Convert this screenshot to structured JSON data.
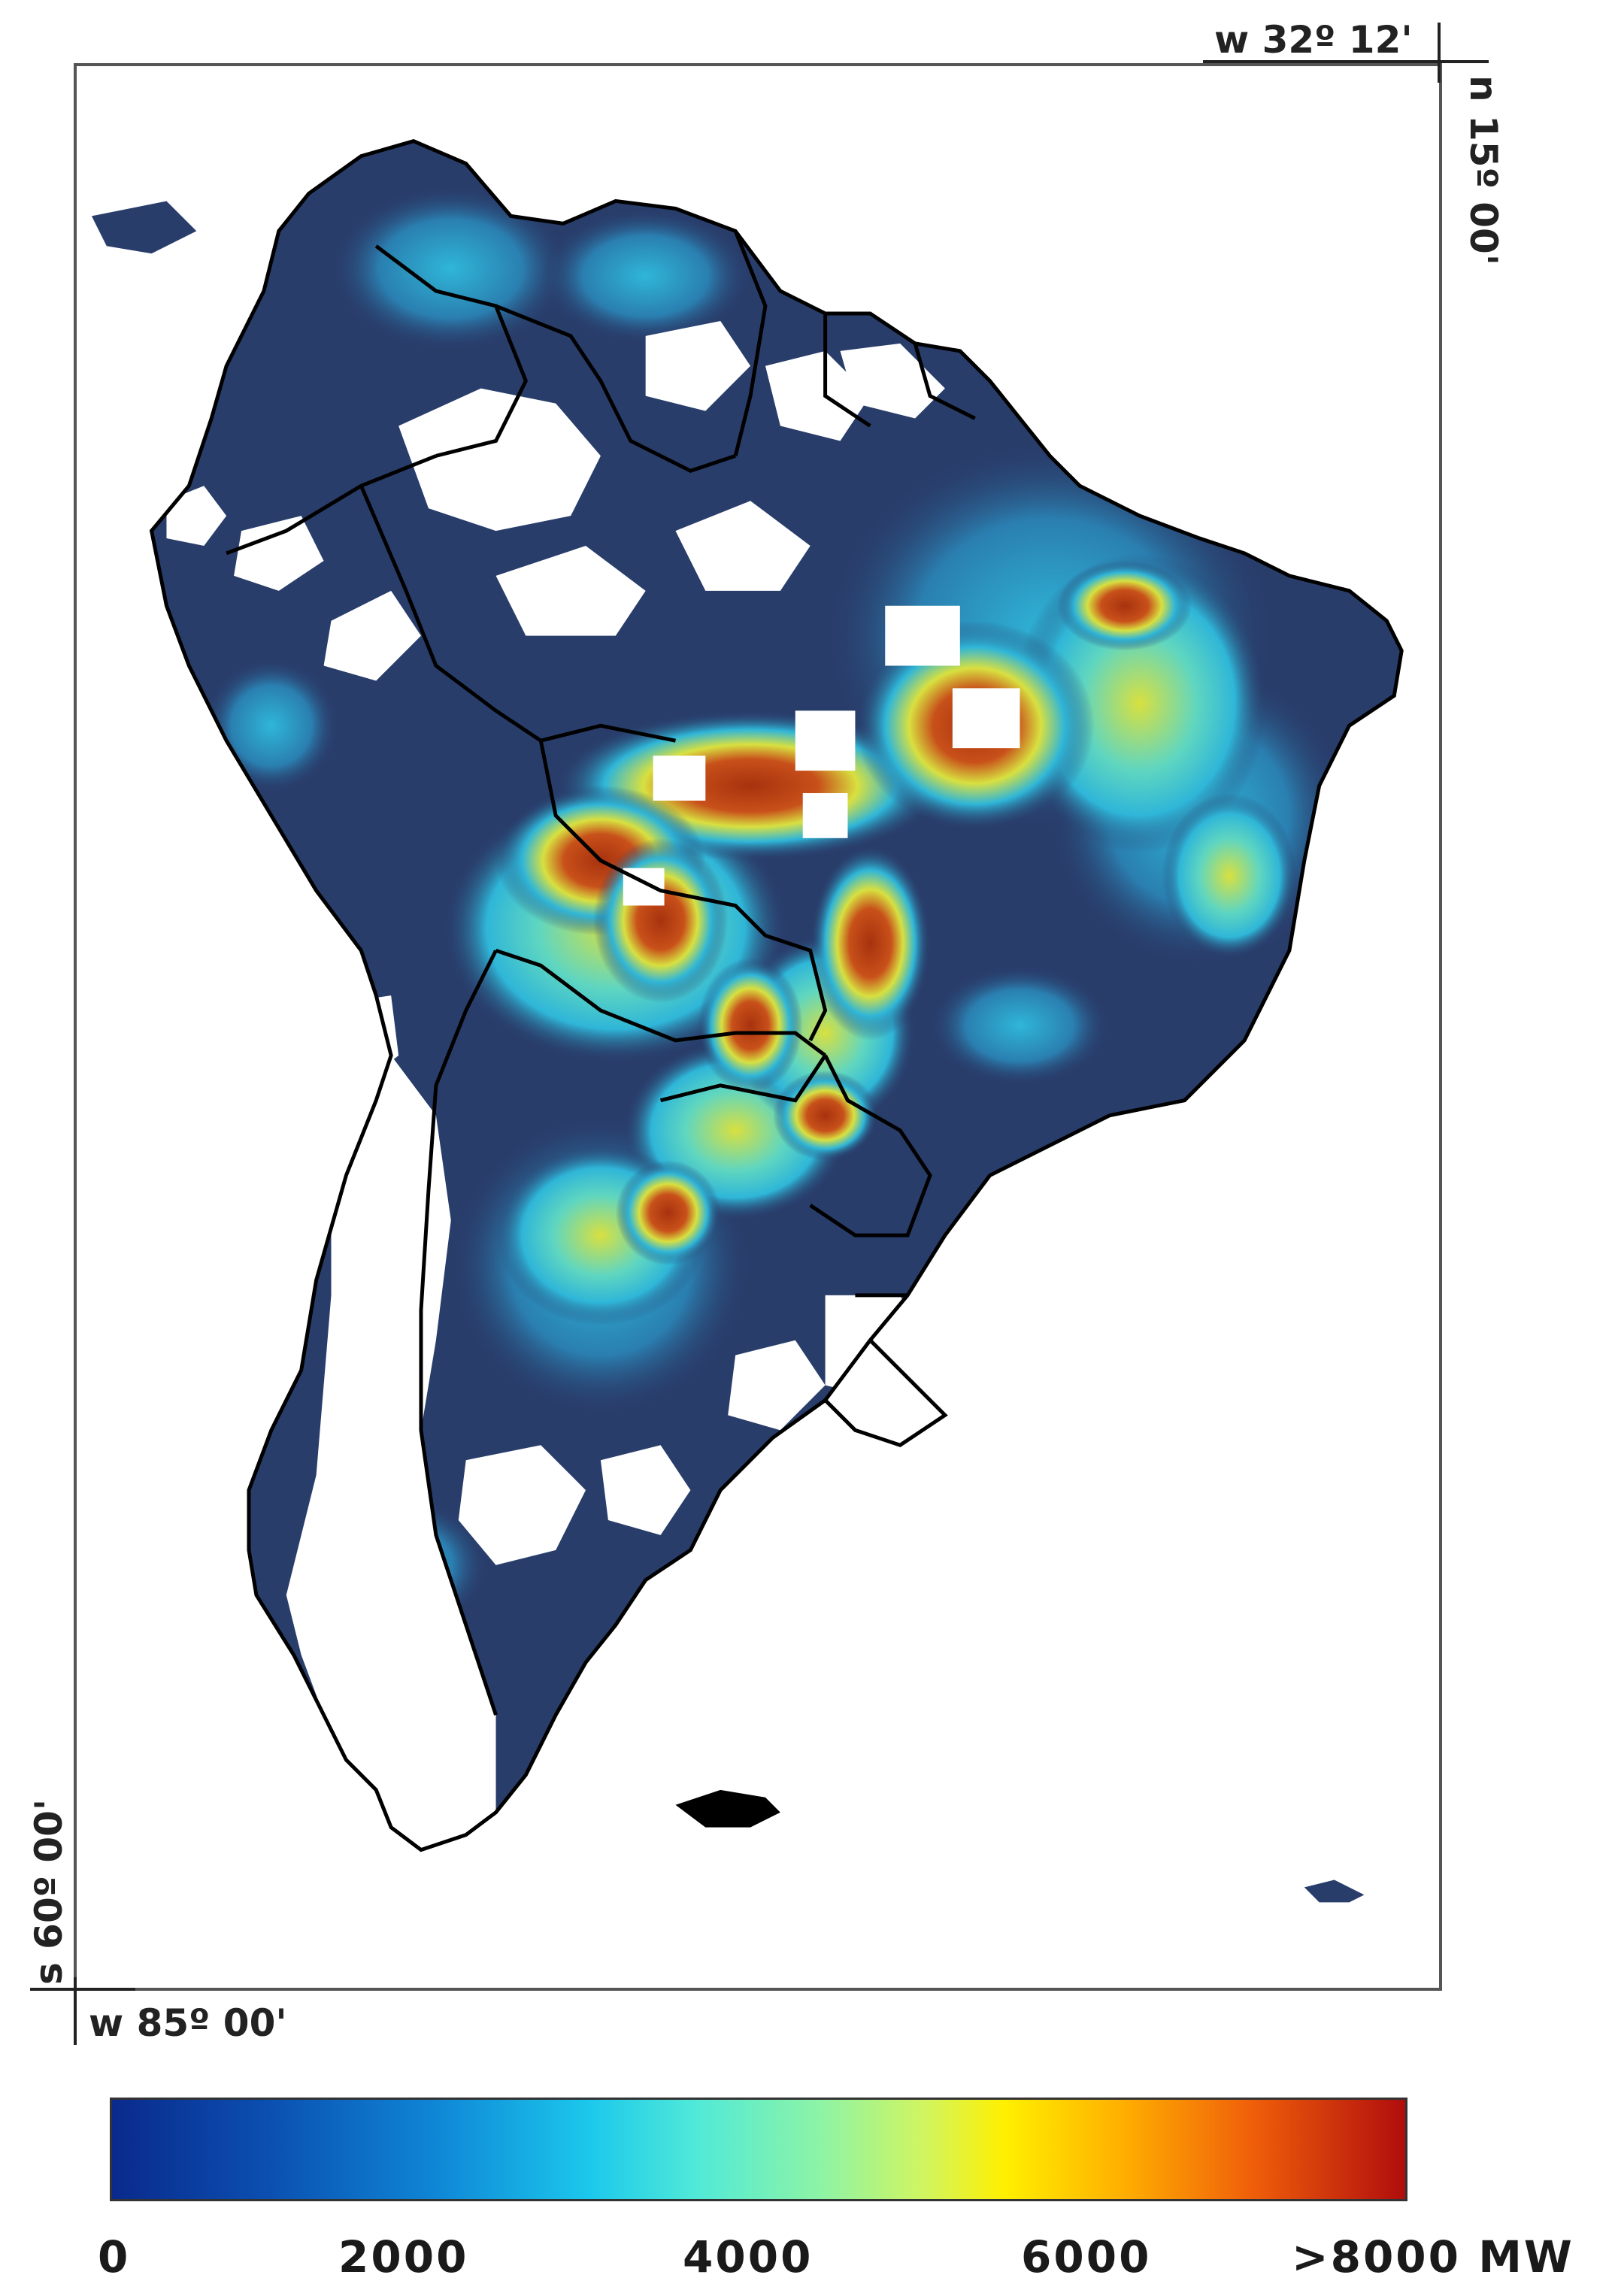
{
  "map": {
    "coords": {
      "top_right": "w 32º 12'",
      "right_vertical": "n 15º 00'",
      "left_vertical": "s 60º 00'",
      "bottom_left": "w 85º 00'"
    },
    "colors": {
      "land_dark": "#293d6b",
      "mid_cyan": "#2fb6d8",
      "high_yellow": "#d8e040",
      "peak_red": "#a8320e",
      "border": "#000000"
    }
  },
  "colorbar": {
    "ticks": [
      "0",
      "2000",
      "4000",
      "6000",
      ">8000 MW"
    ],
    "range": [
      0,
      8000
    ],
    "unit": "MW",
    "stops": [
      "#0a2a8c",
      "#0f86d6",
      "#1cc8ec",
      "#8ff4a4",
      "#fff000",
      "#f0600a",
      "#b00d0d"
    ]
  }
}
